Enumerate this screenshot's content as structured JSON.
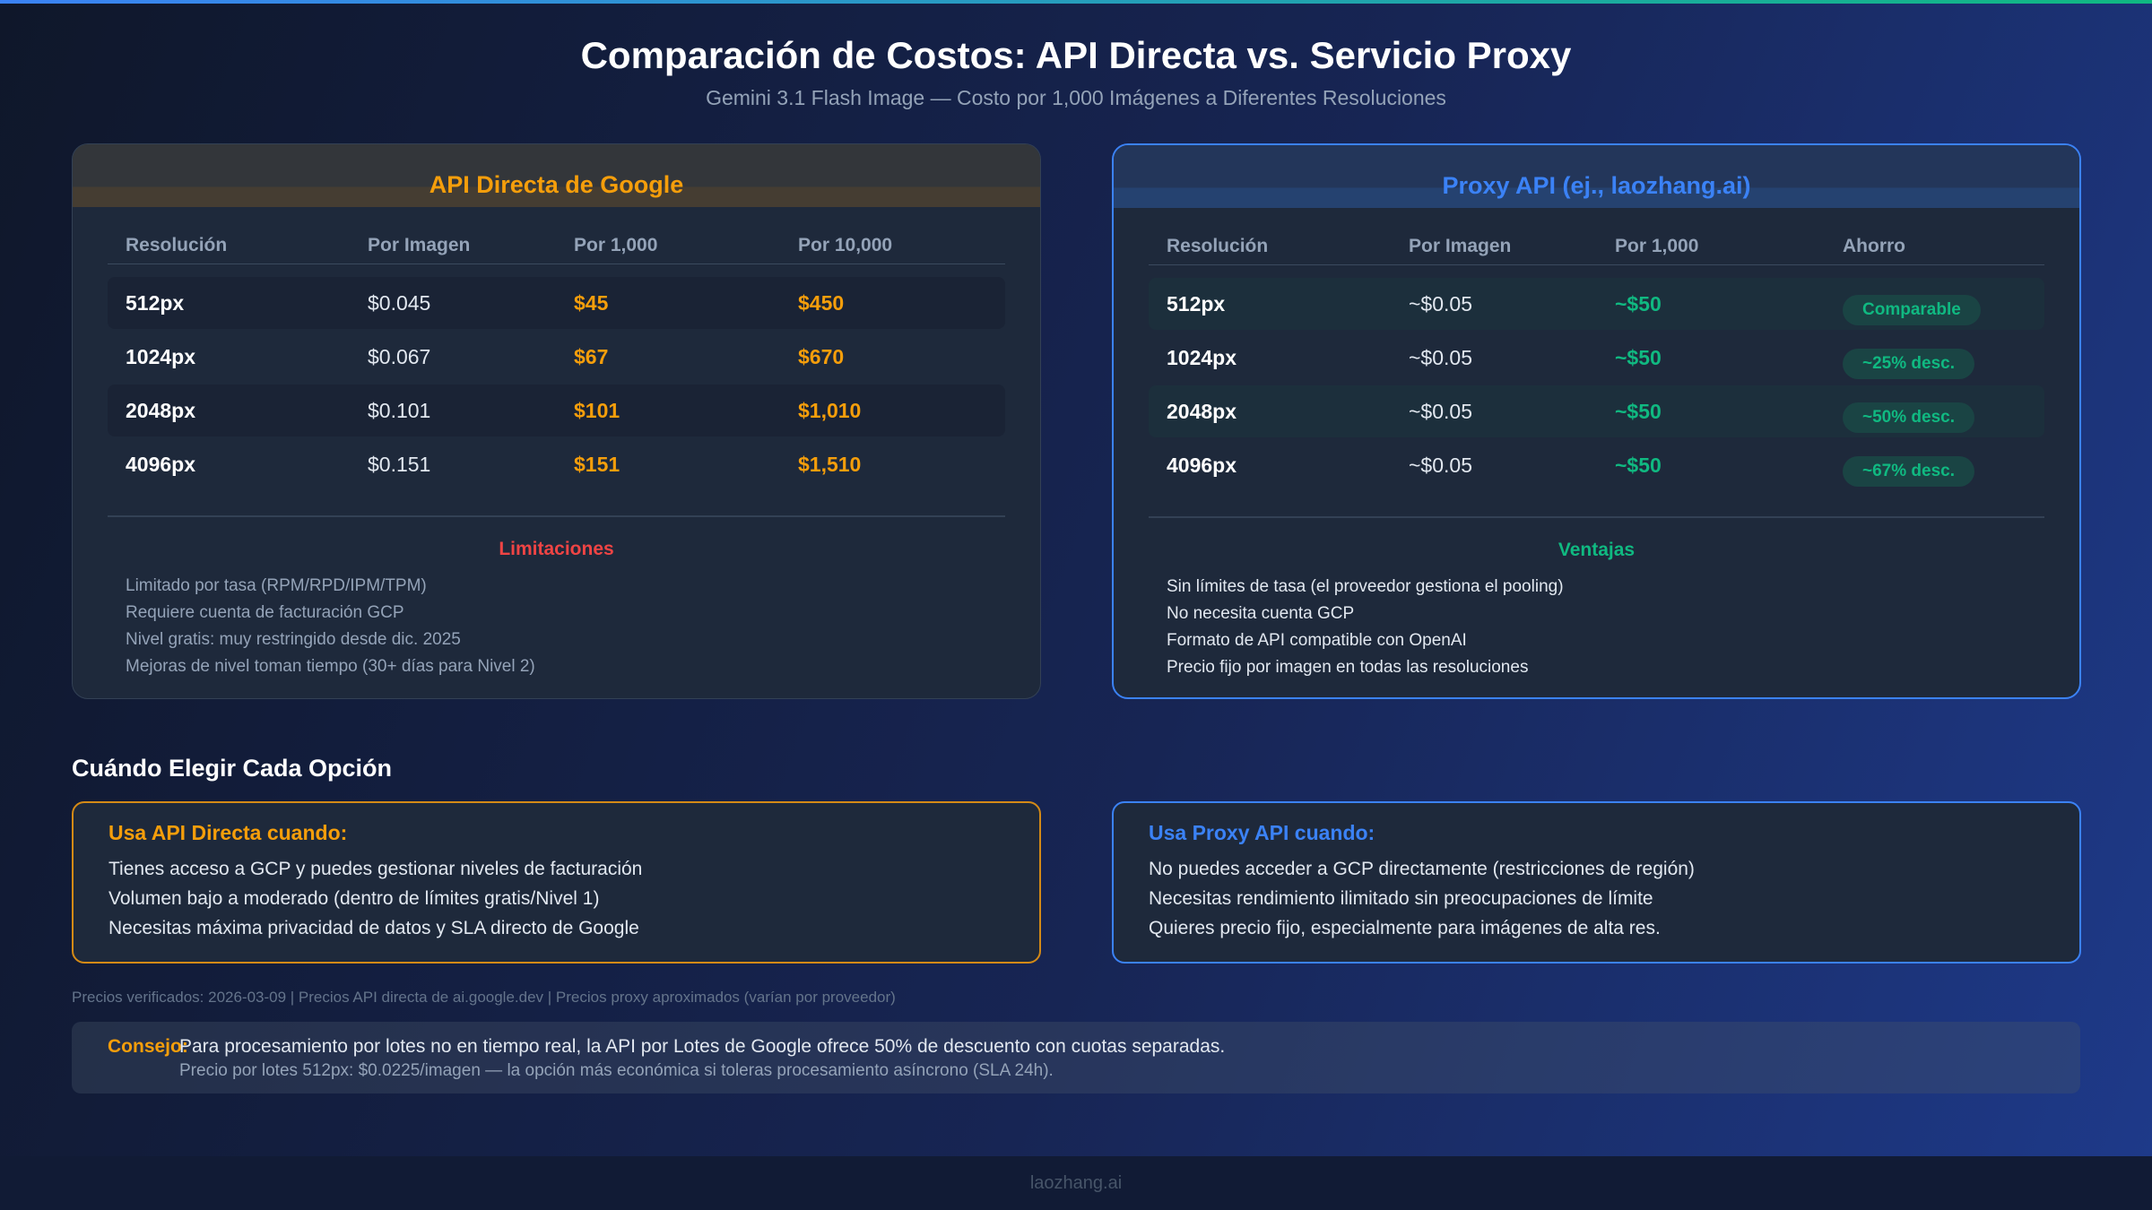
{
  "header": {
    "title": "Comparación de Costos: API Directa vs. Servicio Proxy",
    "subtitle": "Gemini 3.1 Flash Image — Costo por 1,000 Imágenes a Diferentes Resoluciones"
  },
  "direct": {
    "title": "API Directa de Google",
    "columns": [
      "Resolución",
      "Por Imagen",
      "Por 1,000",
      "Por 10,000"
    ],
    "rows": [
      {
        "res": "512px",
        "per_image": "$0.045",
        "per_1000": "$45",
        "per_10000": "$450"
      },
      {
        "res": "1024px",
        "per_image": "$0.067",
        "per_1000": "$67",
        "per_10000": "$670"
      },
      {
        "res": "2048px",
        "per_image": "$0.101",
        "per_1000": "$101",
        "per_10000": "$1,010"
      },
      {
        "res": "4096px",
        "per_image": "$0.151",
        "per_1000": "$151",
        "per_10000": "$1,510"
      }
    ],
    "section_title": "Limitaciones",
    "bullets": [
      "Limitado por tasa (RPM/RPD/IPM/TPM)",
      "Requiere cuenta de facturación GCP",
      "Nivel gratis: muy restringido desde dic. 2025",
      "Mejoras de nivel toman tiempo (30+ días para Nivel 2)"
    ]
  },
  "proxy": {
    "title": "Proxy API (ej., laozhang.ai)",
    "columns": [
      "Resolución",
      "Por Imagen",
      "Por 1,000",
      "Ahorro"
    ],
    "rows": [
      {
        "res": "512px",
        "per_image": "~$0.05",
        "per_1000": "~$50",
        "savings": "Comparable"
      },
      {
        "res": "1024px",
        "per_image": "~$0.05",
        "per_1000": "~$50",
        "savings": "~25% desc."
      },
      {
        "res": "2048px",
        "per_image": "~$0.05",
        "per_1000": "~$50",
        "savings": "~50% desc."
      },
      {
        "res": "4096px",
        "per_image": "~$0.05",
        "per_1000": "~$50",
        "savings": "~67% desc."
      }
    ],
    "section_title": "Ventajas",
    "bullets": [
      "Sin límites de tasa (el proveedor gestiona el pooling)",
      "No necesita cuenta GCP",
      "Formato de API compatible con OpenAI",
      "Precio fijo por imagen en todas las resoluciones"
    ]
  },
  "when": {
    "title": "Cuándo Elegir Cada Opción",
    "direct": {
      "heading": "Usa API Directa cuando:",
      "items": [
        "Tienes acceso a GCP y puedes gestionar niveles de facturación",
        "Volumen bajo a moderado (dentro de límites gratis/Nivel 1)",
        "Necesitas máxima privacidad de datos y SLA directo de Google"
      ]
    },
    "proxy": {
      "heading": "Usa Proxy API cuando:",
      "items": [
        "No puedes acceder a GCP directamente (restricciones de región)",
        "Necesitas rendimiento ilimitado sin preocupaciones de límite",
        "Quieres precio fijo, especialmente para imágenes de alta res."
      ]
    }
  },
  "footnote": "Precios verificados: 2026-03-09 | Precios API directa de ai.google.dev | Precios proxy aproximados (varían por proveedor)",
  "tip": {
    "label": "Consejo:",
    "main": "Para procesamiento por lotes no en tiempo real, la API por Lotes de Google ofrece 50% de descuento con cuotas separadas.",
    "sub": "Precio por lotes 512px: $0.0225/imagen — la opción más económica si toleras procesamiento asíncrono (SLA 24h)."
  },
  "footer": "laozhang.ai",
  "colors": {
    "accent_direct": "#f59e0b",
    "accent_proxy": "#3b82f6",
    "positive": "#10b981",
    "negative": "#ef4444"
  }
}
